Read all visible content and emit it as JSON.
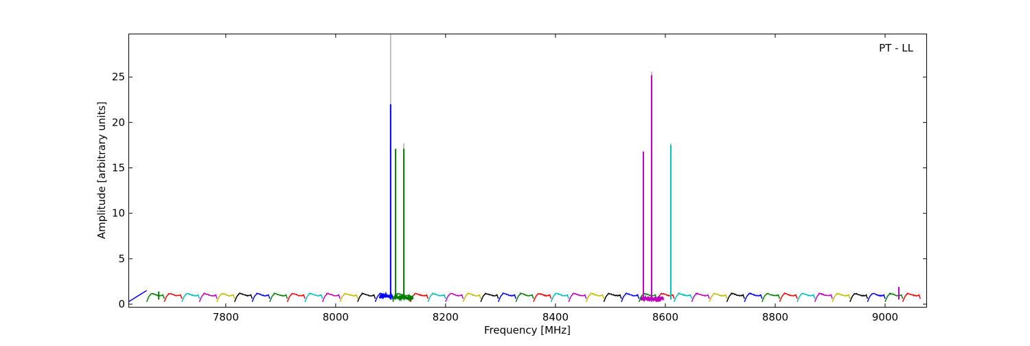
{
  "chart_data": {
    "type": "line",
    "title": "",
    "annotation": "PT - LL",
    "xlabel": "Frequency [MHz]",
    "ylabel": "Amplitude [arbitrary units]",
    "xlim": [
      7624,
      9075
    ],
    "ylim": [
      -0.3,
      29.7
    ],
    "grid": false,
    "legend": "none",
    "x_ticks": [
      7800,
      8000,
      8200,
      8400,
      8600,
      8800,
      9000
    ],
    "y_ticks": [
      0,
      5,
      10,
      15,
      20,
      25
    ],
    "x_tick_labels": [
      "7800",
      "8000",
      "8200",
      "8400",
      "8600",
      "8800",
      "9000"
    ],
    "y_tick_labels": [
      "0",
      "5",
      "10",
      "15",
      "20",
      "25"
    ],
    "channel_width_mhz": 32,
    "channel_start_mhz": 7624,
    "channel_count": 45,
    "channel_shape": {
      "dip_low": 0.25,
      "plateau": 1.05
    },
    "palette": [
      "#0000ff",
      "#007f00",
      "#ff0000",
      "#00bfbf",
      "#bf00bf",
      "#bfbf00",
      "#000000"
    ],
    "baseline_bands": [
      {
        "x_range": [
          8080,
          8104
        ],
        "color": "#0000ff",
        "level": 0.9,
        "noise": 0.2
      },
      {
        "x_range": [
          8104,
          8140
        ],
        "color": "#007f00",
        "level": 0.75,
        "noise": 0.25
      },
      {
        "x_range": [
          8556,
          8596
        ],
        "color": "#bf00bf",
        "level": 0.6,
        "noise": 0.25
      }
    ],
    "spikes": [
      {
        "x": 8100,
        "y": 29.7,
        "color": "#bfbfbf"
      },
      {
        "x": 8100,
        "y": 22.0,
        "color": "#0000ff"
      },
      {
        "x": 8109,
        "y": 17.1,
        "color": "#007f00"
      },
      {
        "x": 8124,
        "y": 17.7,
        "color": "#bfbfbf"
      },
      {
        "x": 8124,
        "y": 17.1,
        "color": "#007f00"
      },
      {
        "x": 8560,
        "y": 16.8,
        "color": "#bf00bf"
      },
      {
        "x": 8575,
        "y": 25.6,
        "color": "#bfbfbf"
      },
      {
        "x": 8575,
        "y": 25.2,
        "color": "#bf00bf"
      },
      {
        "x": 8610,
        "y": 17.7,
        "color": "#bfbfbf"
      },
      {
        "x": 8610,
        "y": 17.5,
        "color": "#00bfbf"
      },
      {
        "x": 9025,
        "y": 1.9,
        "color": "#bf00bf"
      },
      {
        "x": 7678,
        "y": 1.4,
        "color": "#007f00"
      }
    ]
  }
}
